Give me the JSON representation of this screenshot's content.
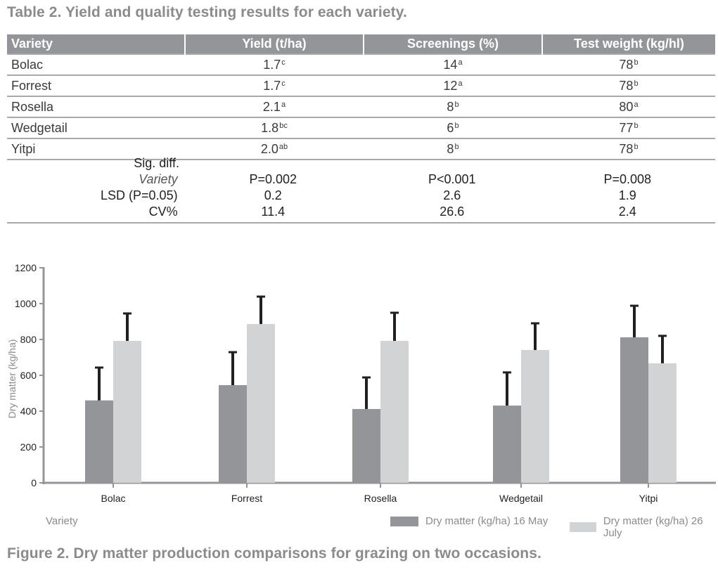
{
  "table": {
    "caption": "Table 2. Yield and quality testing results for each variety.",
    "headers": [
      "Variety",
      "Yield (t/ha)",
      "Screenings (%)",
      "Test weight (kg/hl)"
    ],
    "rows": [
      {
        "variety": "Bolac",
        "yield": "1.7",
        "yield_sig": "c",
        "screenings": "14",
        "screenings_sig": "a",
        "test_weight": "78",
        "test_weight_sig": "b"
      },
      {
        "variety": "Forrest",
        "yield": "1.7",
        "yield_sig": "c",
        "screenings": "12",
        "screenings_sig": "a",
        "test_weight": "78",
        "test_weight_sig": "b"
      },
      {
        "variety": "Rosella",
        "yield": "2.1",
        "yield_sig": "a",
        "screenings": "8",
        "screenings_sig": "b",
        "test_weight": "80",
        "test_weight_sig": "a"
      },
      {
        "variety": "Wedgetail",
        "yield": "1.8",
        "yield_sig": "bc",
        "screenings": "6",
        "screenings_sig": "b",
        "test_weight": "77",
        "test_weight_sig": "b"
      },
      {
        "variety": "Yitpi",
        "yield": "2.0",
        "yield_sig": "ab",
        "screenings": "8",
        "screenings_sig": "b",
        "test_weight": "78",
        "test_weight_sig": "b"
      }
    ],
    "stats": {
      "sig_diff_label": "Sig. diff.",
      "variety_label": "Variety",
      "variety_values": [
        "P=0.002",
        "P<0.001",
        "P=0.008"
      ],
      "lsd_label": "LSD (P=0.05)",
      "lsd_values": [
        "0.2",
        "2.6",
        "1.9"
      ],
      "cv_label": "CV%",
      "cv_values": [
        "11.4",
        "26.6",
        "2.4"
      ]
    }
  },
  "figure": {
    "caption": "Figure 2. Dry matter production comparisons for grazing on two occasions.",
    "xaxis_title": "Variety"
  },
  "colors": {
    "series_may": "#939598",
    "series_july": "#d1d3d4",
    "error_bar": "#231f20",
    "axis": "#939598",
    "caption": "#8a8b8d",
    "header_bg": "#939598"
  },
  "chart_data": {
    "type": "bar",
    "title": "",
    "xlabel": "Variety",
    "ylabel": "Dry matter (kg/ha)",
    "ylim": [
      0,
      1200
    ],
    "yticks": [
      0,
      200,
      400,
      600,
      800,
      1000,
      1200
    ],
    "grid": false,
    "legend_position": "bottom-right",
    "categories": [
      "Bolac",
      "Forrest",
      "Rosella",
      "Wedgetail",
      "Yitpi"
    ],
    "series": [
      {
        "name": "Dry matter (kg/ha) 16 May",
        "values": [
          460,
          545,
          412,
          431,
          812
        ],
        "error_upper": [
          647,
          733,
          592,
          620,
          992
        ]
      },
      {
        "name": "Dry matter (kg/ha) 26 July",
        "values": [
          792,
          886,
          792,
          741,
          667
        ],
        "error_upper": [
          949,
          1043,
          953,
          894,
          824
        ]
      }
    ]
  }
}
